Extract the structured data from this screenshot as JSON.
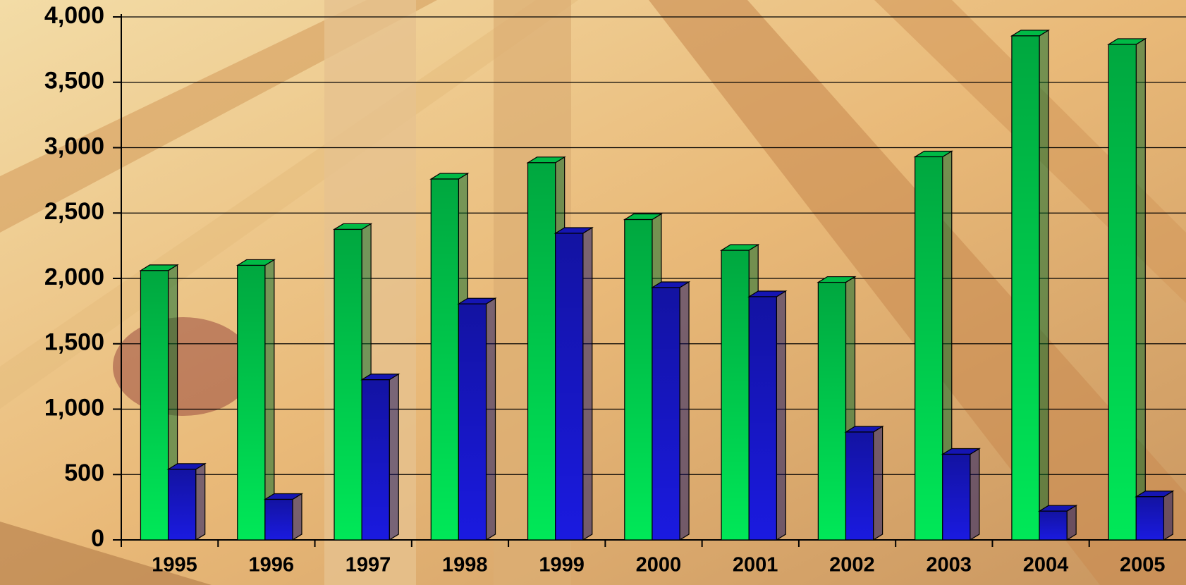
{
  "chart_data": {
    "type": "bar3d",
    "categories": [
      "1995",
      "1996",
      "1997",
      "1998",
      "1999",
      "2000",
      "2001",
      "2002",
      "2003",
      "2004",
      "2005"
    ],
    "series": [
      {
        "color": "#00e858",
        "values": [
          2060,
          2100,
          2375,
          2760,
          2885,
          2450,
          2215,
          1970,
          2930,
          3855,
          3790
        ]
      },
      {
        "color": "#1a1ae0",
        "values": [
          540,
          310,
          1225,
          1805,
          2345,
          1930,
          1860,
          825,
          655,
          220,
          330
        ]
      }
    ],
    "ylim": [
      0,
      4000
    ],
    "yticks": [
      0,
      500,
      {
        "value": 1000,
        "label": "1,000"
      },
      {
        "value": 1500,
        "label": "1,500"
      },
      {
        "value": 2000,
        "label": "2,000"
      },
      {
        "value": 2500,
        "label": "2,500"
      },
      {
        "value": 3000,
        "label": "3,000"
      },
      {
        "value": 3500,
        "label": "3,500"
      },
      {
        "value": 4000,
        "label": "4,000"
      }
    ],
    "grid": true
  }
}
